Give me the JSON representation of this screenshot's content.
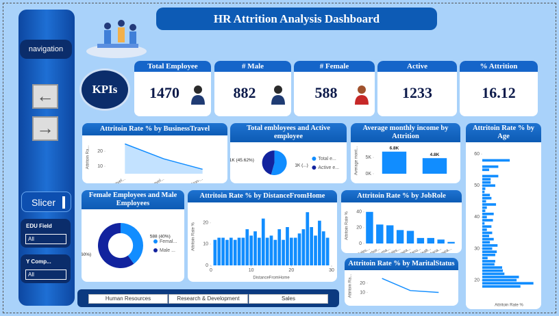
{
  "header": {
    "title": "HR Attrition Analysis Dashboard"
  },
  "sidebar": {
    "navigation": "navigation",
    "kpis": "KPIs",
    "slicer": "Slicer",
    "filters": [
      {
        "label": "EDU Field",
        "value": "All"
      },
      {
        "label": "Y Comp...",
        "value": "All"
      }
    ]
  },
  "kpis": [
    {
      "title": "Total Employee",
      "value": 1470
    },
    {
      "title": "# Male",
      "value": 882
    },
    {
      "title": "# Female",
      "value": 588
    },
    {
      "title": "Active",
      "value": 1233
    },
    {
      "title": "% Attrition",
      "value": 16.12
    }
  ],
  "department_buttons": [
    "Human Resources",
    "Research & Development",
    "Sales"
  ],
  "chart_data": [
    {
      "type": "line",
      "title": "Attritoin Rate % by BusinessTravel",
      "categories": [
        "Travel...",
        "Travel...",
        "Non-..."
      ],
      "values": [
        25,
        15,
        8
      ],
      "color": "#118dff",
      "y_label": "Attritoin Ra...",
      "ylim": [
        5,
        27
      ],
      "yticks": [
        10,
        20
      ]
    },
    {
      "type": "pie",
      "title": "Total embloyees and Active employee",
      "categories": [
        "Total e...",
        "Active e..."
      ],
      "values": [
        1470,
        1233
      ],
      "value_labels": [
        "1K (...)",
        "1K (45.62%)"
      ],
      "colors": [
        "#118dff",
        "#12239e"
      ]
    },
    {
      "type": "bar",
      "title": "Average monthly income by Attrition",
      "categories": [
        null,
        null
      ],
      "values": [
        6800,
        4800
      ],
      "value_labels": [
        "6.8K",
        "4.8K"
      ],
      "color": "#118dff",
      "y_label": "Average mont...",
      "ylim": [
        0,
        8000
      ],
      "yticks": [
        {
          "value": 0,
          "label": "0K"
        },
        {
          "value": 5000,
          "label": "5K"
        }
      ]
    },
    {
      "type": "barh",
      "title": "Attritoin Rate % by Age",
      "y": [
        18,
        19,
        20,
        21,
        22,
        23,
        24,
        25,
        26,
        27,
        28,
        29,
        30,
        31,
        32,
        33,
        34,
        35,
        36,
        37,
        38,
        39,
        40,
        41,
        42,
        43,
        44,
        45,
        46,
        47,
        48,
        49,
        50,
        51,
        52,
        53,
        54,
        55,
        56,
        57,
        58,
        59,
        60
      ],
      "values": [
        50,
        67,
        45,
        48,
        29,
        27,
        26,
        16,
        17,
        7,
        17,
        19,
        13,
        20,
        10,
        15,
        9,
        13,
        6,
        12,
        3,
        14,
        6,
        15,
        4,
        6,
        18,
        5,
        12,
        10,
        3,
        4,
        17,
        11,
        11,
        21,
        0,
        9,
        21,
        0,
        36,
        0,
        0
      ],
      "color": "#118dff",
      "x_label": "Attritoin Rate %",
      "xlim": [
        0,
        70
      ],
      "ylim": [
        16,
        62
      ],
      "yticks": [
        20,
        30,
        40,
        50,
        60
      ]
    },
    {
      "type": "donut",
      "title": "Female Employees and Male Employees",
      "categories": [
        "Femal...",
        "Male ..."
      ],
      "values": [
        588,
        882
      ],
      "value_labels": [
        "588 (40%)",
        "882 (60%)"
      ],
      "colors": [
        "#118dff",
        "#12239e"
      ]
    },
    {
      "type": "bar",
      "title": "Attritoin Rate % by DistanceFromHome",
      "x": [
        1,
        2,
        3,
        4,
        5,
        6,
        7,
        8,
        9,
        10,
        11,
        12,
        13,
        14,
        15,
        16,
        17,
        18,
        19,
        20,
        21,
        22,
        23,
        24,
        25,
        26,
        27,
        28,
        29
      ],
      "values": [
        12,
        13,
        13,
        12,
        13,
        12,
        13,
        13,
        17,
        14,
        16,
        13,
        22,
        13,
        14,
        12,
        17,
        12,
        18,
        13,
        13,
        15,
        17,
        25,
        18,
        14,
        21,
        16,
        13
      ],
      "color": "#118dff",
      "x_label": "DistanceFromHome",
      "y_label": "Attritoin Rate %",
      "xlim": [
        0,
        30
      ],
      "xticks": [
        0,
        10,
        20,
        30
      ],
      "ylim": [
        0,
        27
      ],
      "yticks": [
        0,
        10,
        20
      ]
    },
    {
      "type": "bar",
      "title": "Attritoin Rate % by JobRole",
      "categories": [
        "Sales...",
        "Labor...",
        "Huma...",
        "Sales...",
        "Resea...",
        "Manu...",
        "Healt...",
        "Mana...",
        "Resea..."
      ],
      "values": [
        40,
        24,
        23,
        17,
        16,
        7,
        7,
        5,
        2
      ],
      "color": "#118dff",
      "y_label": "Attritoin Rate %",
      "ylim": [
        0,
        45
      ],
      "yticks": [
        0,
        20,
        40
      ]
    },
    {
      "type": "line",
      "title": "Attritoin Rate % by MaritalStatus",
      "categories": [
        null,
        null,
        null
      ],
      "values": [
        25,
        12,
        10
      ],
      "color": "#118dff",
      "y_label": "Attritoin Ra...",
      "ylim": [
        6,
        28
      ],
      "yticks": [
        10,
        20
      ]
    }
  ]
}
